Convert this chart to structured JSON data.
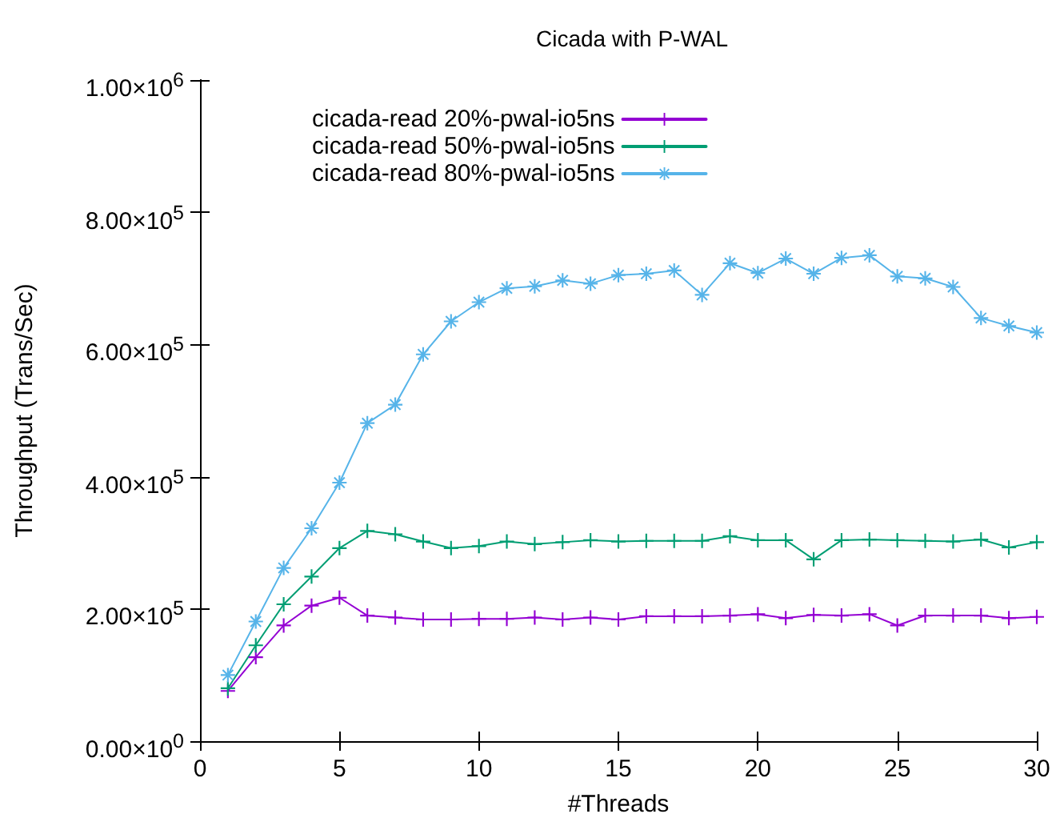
{
  "chart_data": {
    "type": "line",
    "title": "Cicada with P-WAL",
    "xlabel": "#Threads",
    "ylabel": "Throughput (Trans/Sec)",
    "x": [
      1,
      2,
      3,
      4,
      5,
      6,
      7,
      8,
      9,
      10,
      11,
      12,
      13,
      14,
      15,
      16,
      17,
      18,
      19,
      20,
      21,
      22,
      23,
      24,
      25,
      26,
      27,
      28,
      29,
      30
    ],
    "series": [
      {
        "name": "cicada-read 20%-pwal-io5ns",
        "color": "#9400d3",
        "marker": "cross",
        "values": [
          76000,
          127000,
          175000,
          205000,
          217000,
          190000,
          187000,
          184000,
          184000,
          185000,
          185000,
          187000,
          184000,
          187000,
          184000,
          189000,
          189000,
          189000,
          190000,
          192000,
          186000,
          191000,
          190000,
          192000,
          175000,
          190000,
          190000,
          190000,
          186000,
          188000
        ]
      },
      {
        "name": "cicada-read 50%-pwal-io5ns",
        "color": "#009e73",
        "marker": "cross",
        "values": [
          80000,
          145000,
          207000,
          249000,
          292000,
          318000,
          313000,
          302000,
          292000,
          295000,
          302000,
          298000,
          301000,
          304000,
          302000,
          303000,
          303000,
          303000,
          310000,
          304000,
          304000,
          275000,
          304000,
          305000,
          304000,
          303000,
          302000,
          305000,
          293000,
          301000
        ]
      },
      {
        "name": "cicada-read 80%-pwal-io5ns",
        "color": "#56b4e9",
        "marker": "star",
        "values": [
          100000,
          181000,
          262000,
          322000,
          391000,
          481000,
          509000,
          585000,
          635000,
          664000,
          685000,
          688000,
          697000,
          692000,
          705000,
          707000,
          712000,
          675000,
          723000,
          708000,
          730000,
          707000,
          731000,
          735000,
          703000,
          700000,
          687000,
          640000,
          628000,
          618000
        ]
      }
    ],
    "xlim": [
      0,
      30
    ],
    "xticks": [
      0,
      5,
      10,
      15,
      20,
      25,
      30
    ],
    "ylim": [
      0,
      1000000
    ],
    "yticks": [
      {
        "value": 0,
        "label": "0.00×10$^{0}$"
      },
      {
        "value": 200000,
        "label": "2.00×10$^{5}$"
      },
      {
        "value": 400000,
        "label": "4.00×10$^{5}$"
      },
      {
        "value": 600000,
        "label": "6.00×10$^{5}$"
      },
      {
        "value": 800000,
        "label": "8.00×10$^{5}$"
      },
      {
        "value": 1000000,
        "label": "1.00×10$^{6}$"
      }
    ],
    "grid": false,
    "legend": "top left",
    "line_style": "solid"
  }
}
